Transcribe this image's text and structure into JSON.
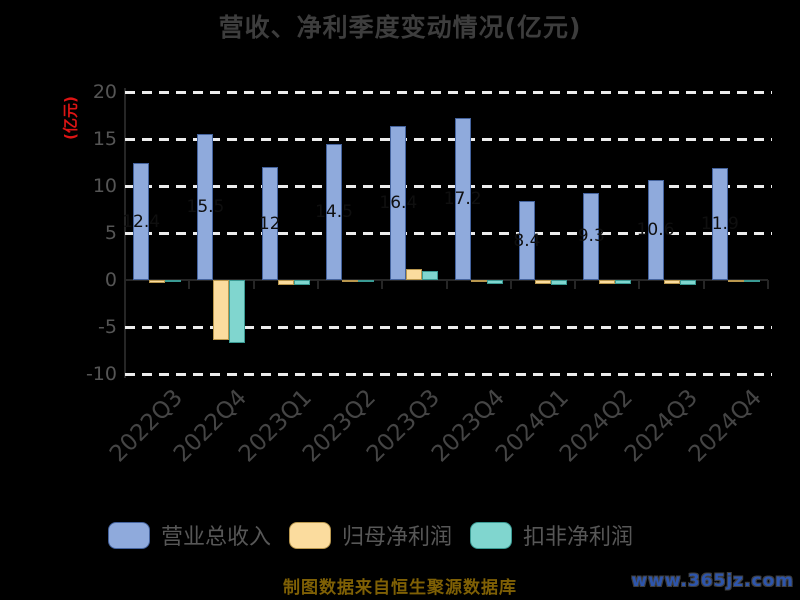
{
  "title": "营收、净利季度变动情况(亿元)",
  "caption": "制图数据来自恒生聚源数据库",
  "watermark": "www.365jz.com",
  "colors": {
    "background": "#000000",
    "title_text": "#3d3d3d",
    "axis_text": "#555555",
    "gridline": "#ececec",
    "y_axis_name_red": "#dd1414",
    "caption_gold": "#7f6005",
    "watermark_blue": "#2d55ac"
  },
  "chart_data": {
    "type": "bar",
    "title": "营收、净利季度变动情况(亿元)",
    "ylabel": "(亿元)",
    "xlabel": "",
    "ylim": [
      -10,
      20
    ],
    "yticks": [
      20,
      15,
      10,
      5,
      0,
      -5,
      -10
    ],
    "grid": "horizontal dashed white lines",
    "legend_position": "bottom",
    "categories": [
      "2022Q3",
      "2022Q4",
      "2023Q1",
      "2023Q2",
      "2023Q3",
      "2023Q4",
      "2024Q1",
      "2024Q2",
      "2024Q3",
      "2024Q4"
    ],
    "series": [
      {
        "name": "营业总收入",
        "color": "#8faadc",
        "border": "#44639e",
        "values": [
          12.4,
          15.5,
          12.0,
          14.5,
          16.4,
          17.2,
          8.4,
          9.3,
          10.6,
          11.9
        ],
        "labels": [
          "12.4",
          "15.5",
          "12",
          "14.5",
          "16.4",
          "17.2",
          "8.4",
          "9.3",
          "10.6",
          "11.9"
        ]
      },
      {
        "name": "归母净利润",
        "color": "#fbdc9e",
        "border": "#b9974e",
        "values": [
          -0.3,
          -6.4,
          -0.5,
          -0.2,
          1.2,
          -0.2,
          -0.4,
          -0.4,
          -0.45,
          -0.1
        ]
      },
      {
        "name": "扣非净利润",
        "color": "#80d6cf",
        "border": "#3a9a93",
        "values": [
          -0.25,
          -6.7,
          -0.55,
          -0.25,
          1.0,
          -0.4,
          -0.5,
          -0.45,
          -0.5,
          -0.05
        ]
      }
    ]
  }
}
